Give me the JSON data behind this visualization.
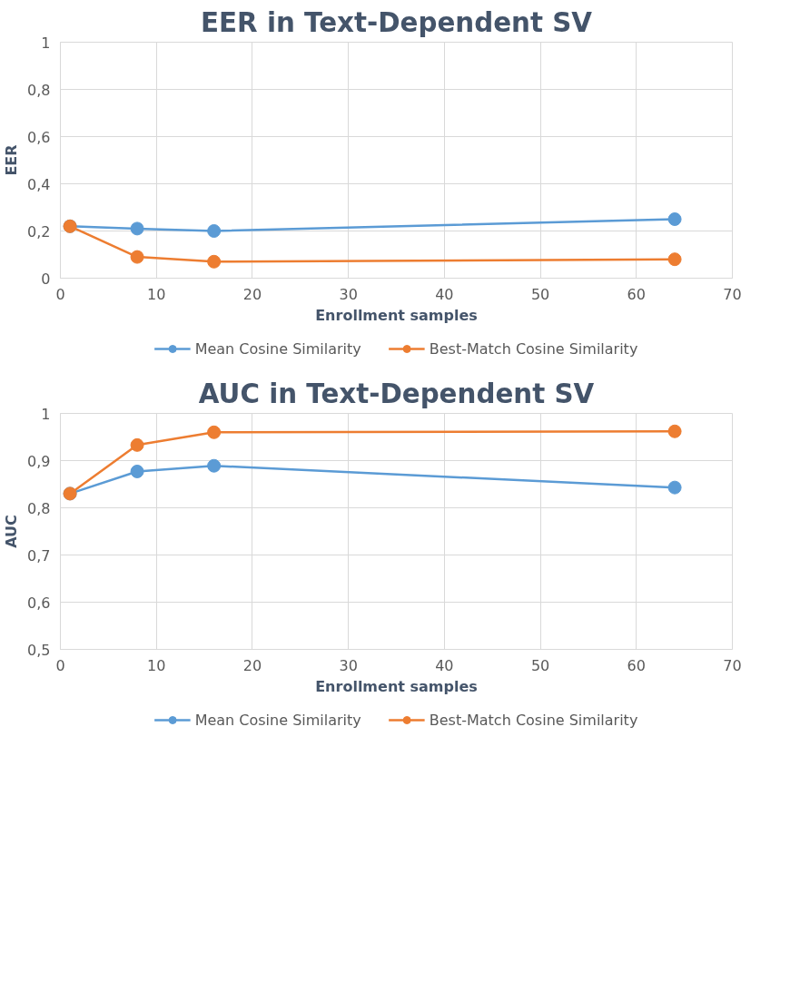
{
  "chart_data": [
    {
      "type": "line",
      "title": "EER in Text-Dependent SV",
      "xlabel": "Enrollment samples",
      "ylabel": "EER",
      "x": [
        1,
        8,
        16,
        64
      ],
      "series": [
        {
          "name": "Mean Cosine Similarity",
          "color": "#5b9bd5",
          "values": [
            0.22,
            0.21,
            0.2,
            0.25
          ]
        },
        {
          "name": "Best-Match Cosine Similarity",
          "color": "#ed7d31",
          "values": [
            0.22,
            0.09,
            0.07,
            0.08
          ]
        }
      ],
      "xlim": [
        0,
        70
      ],
      "xticks": [
        {
          "value": 0,
          "label": "0"
        },
        10,
        20,
        30,
        40,
        50,
        60,
        70
      ],
      "ylim": [
        0,
        1
      ],
      "yticks": [
        {
          "value": 0,
          "label": "0"
        },
        {
          "value": 0.2,
          "label": "0,2"
        },
        {
          "value": 0.4,
          "label": "0,4"
        },
        {
          "value": 0.6,
          "label": "0,6"
        },
        {
          "value": 0.8,
          "label": "0,8"
        },
        1
      ],
      "grid": true,
      "legend": "bottom",
      "marker": "circle",
      "line_style": "solid"
    },
    {
      "type": "line",
      "title": "AUC in Text-Dependent SV",
      "xlabel": "Enrollment samples",
      "ylabel": "AUC",
      "x": [
        1,
        8,
        16,
        64
      ],
      "series": [
        {
          "name": "Mean Cosine Similarity",
          "color": "#5b9bd5",
          "values": [
            0.83,
            0.877,
            0.889,
            0.843
          ]
        },
        {
          "name": "Best-Match Cosine Similarity",
          "color": "#ed7d31",
          "values": [
            0.83,
            0.933,
            0.96,
            0.962
          ]
        }
      ],
      "xlim": [
        0,
        70
      ],
      "xticks": [
        {
          "value": 0,
          "label": "0"
        },
        10,
        20,
        30,
        40,
        50,
        60,
        70
      ],
      "ylim": [
        0.5,
        1
      ],
      "yticks": [
        {
          "value": 0.5,
          "label": "0,5"
        },
        {
          "value": 0.6,
          "label": "0,6"
        },
        {
          "value": 0.7,
          "label": "0,7"
        },
        {
          "value": 0.8,
          "label": "0,8"
        },
        {
          "value": 0.9,
          "label": "0,9"
        },
        1
      ],
      "grid": true,
      "legend": "bottom",
      "marker": "circle",
      "line_style": "solid"
    }
  ]
}
